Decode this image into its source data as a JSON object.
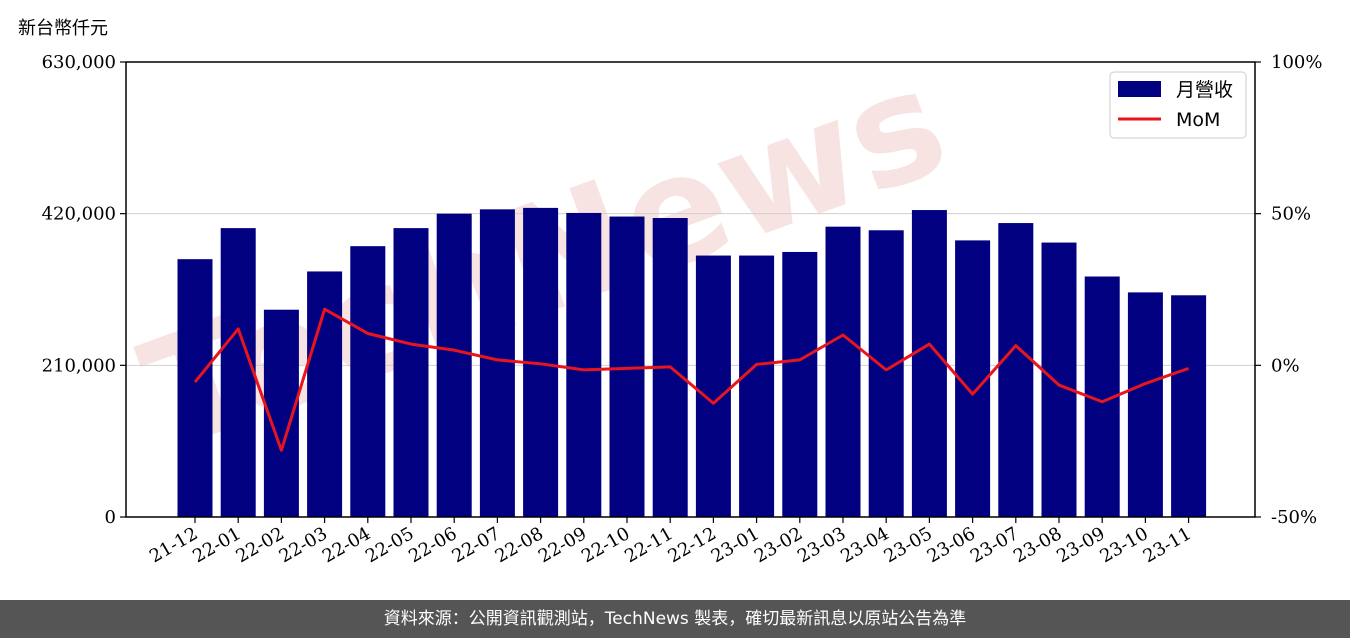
{
  "unit_label": "新台幣仟元",
  "footer_text": "資料來源：公開資訊觀測站，TechNews 製表，確切最新訊息以原站公告為準",
  "watermark_text": "TechNews",
  "colors": {
    "bar": "#000080",
    "line": "#e8141e",
    "footer_bg": "#555555",
    "grid": "#d0d0d0",
    "watermark": "#f3c9c9"
  },
  "chart_data": {
    "type": "bar",
    "categories": [
      "21-12",
      "22-01",
      "22-02",
      "22-03",
      "22-04",
      "22-05",
      "22-06",
      "22-07",
      "22-08",
      "22-09",
      "22-10",
      "22-11",
      "22-12",
      "23-01",
      "23-02",
      "23-03",
      "23-04",
      "23-05",
      "23-06",
      "23-07",
      "23-08",
      "23-09",
      "23-10",
      "23-11"
    ],
    "series": [
      {
        "name": "月營收",
        "type": "bar",
        "axis": "left",
        "values": [
          357000,
          400000,
          287000,
          340000,
          375000,
          400000,
          420000,
          426000,
          428000,
          421000,
          416000,
          414000,
          362000,
          362000,
          367000,
          402000,
          397000,
          425000,
          383000,
          407000,
          380000,
          333000,
          311000,
          307000
        ]
      },
      {
        "name": "MoM",
        "type": "line",
        "axis": "right",
        "unit": "%",
        "values": [
          -5.5,
          12.0,
          -28.0,
          18.5,
          10.5,
          7.0,
          5.0,
          1.8,
          0.5,
          -1.5,
          -1.0,
          -0.5,
          -12.5,
          0.3,
          1.8,
          10.0,
          -1.5,
          7.0,
          -9.5,
          6.5,
          -6.5,
          -12.0,
          -6.0,
          -1.0
        ]
      }
    ],
    "left_axis": {
      "ylim": [
        0,
        630000
      ],
      "ticks": [
        "0",
        "210,000",
        "420,000",
        "630,000"
      ],
      "tick_values": [
        0,
        210000,
        420000,
        630000
      ]
    },
    "right_axis": {
      "ylim": [
        -50,
        100
      ],
      "ticks": [
        "-50%",
        "0%",
        "50%",
        "100%"
      ],
      "tick_values": [
        -50,
        0,
        50,
        100
      ]
    },
    "grid": "horizontal",
    "legend_placement": "top-right"
  }
}
